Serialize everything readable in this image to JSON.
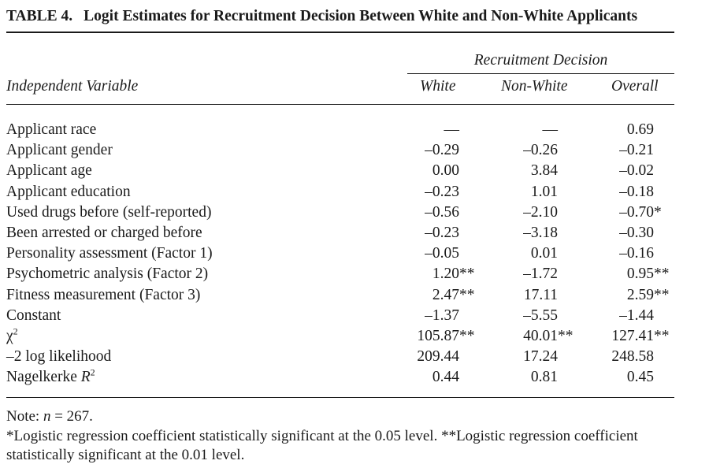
{
  "title": {
    "label": "TABLE 4.",
    "text": "Logit Estimates for Recruitment Decision Between White and Non-White Applicants"
  },
  "header": {
    "group": "Recruitment Decision",
    "independent": "Independent Variable",
    "columns": [
      "White",
      "Non-White",
      "Overall"
    ]
  },
  "rows": [
    {
      "var": "Applicant race",
      "white": "—",
      "white_sig": "",
      "nonwhite": "—",
      "nonwhite_sig": "",
      "overall": "0.69",
      "overall_sig": ""
    },
    {
      "var": "Applicant gender",
      "white": "–0.29",
      "white_sig": "",
      "nonwhite": "–0.26",
      "nonwhite_sig": "",
      "overall": "–0.21",
      "overall_sig": ""
    },
    {
      "var": "Applicant age",
      "white": "0.00",
      "white_sig": "",
      "nonwhite": "3.84",
      "nonwhite_sig": "",
      "overall": "–0.02",
      "overall_sig": ""
    },
    {
      "var": "Applicant education",
      "white": "–0.23",
      "white_sig": "",
      "nonwhite": "1.01",
      "nonwhite_sig": "",
      "overall": "–0.18",
      "overall_sig": ""
    },
    {
      "var": "Used drugs before (self-reported)",
      "white": "–0.56",
      "white_sig": "",
      "nonwhite": "–2.10",
      "nonwhite_sig": "",
      "overall": "–0.70",
      "overall_sig": "*"
    },
    {
      "var": "Been arrested or charged before",
      "white": "–0.23",
      "white_sig": "",
      "nonwhite": "–3.18",
      "nonwhite_sig": "",
      "overall": "–0.30",
      "overall_sig": ""
    },
    {
      "var": "Personality assessment (Factor 1)",
      "white": "–0.05",
      "white_sig": "",
      "nonwhite": "0.01",
      "nonwhite_sig": "",
      "overall": "–0.16",
      "overall_sig": ""
    },
    {
      "var": "Psychometric analysis (Factor 2)",
      "white": "1.20",
      "white_sig": "**",
      "nonwhite": "–1.72",
      "nonwhite_sig": "",
      "overall": "0.95",
      "overall_sig": "**"
    },
    {
      "var": "Fitness measurement (Factor 3)",
      "white": "2.47",
      "white_sig": "**",
      "nonwhite": "17.11",
      "nonwhite_sig": "",
      "overall": "2.59",
      "overall_sig": "**"
    },
    {
      "var": "Constant",
      "white": "–1.37",
      "white_sig": "",
      "nonwhite": "–5.55",
      "nonwhite_sig": "",
      "overall": "–1.44",
      "overall_sig": ""
    },
    {
      "var": "χ",
      "var_sup": "2",
      "white": "105.87",
      "white_sig": "**",
      "nonwhite": "40.01",
      "nonwhite_sig": "**",
      "overall": "127.41",
      "overall_sig": "**"
    },
    {
      "var": "–2 log likelihood",
      "white": "209.44",
      "white_sig": "",
      "nonwhite": "17.24",
      "nonwhite_sig": "",
      "overall": "248.58",
      "overall_sig": ""
    },
    {
      "var": "Nagelkerke R",
      "var_sup": "2",
      "white": "0.44",
      "white_sig": "",
      "nonwhite": "0.81",
      "nonwhite_sig": "",
      "overall": "0.45",
      "overall_sig": ""
    }
  ],
  "note": "Note: n = 267.",
  "footnote": "*Logistic regression coefficient statistically significant at the 0.05 level. **Logistic regression coefficient statistically significant at the 0.01 level."
}
